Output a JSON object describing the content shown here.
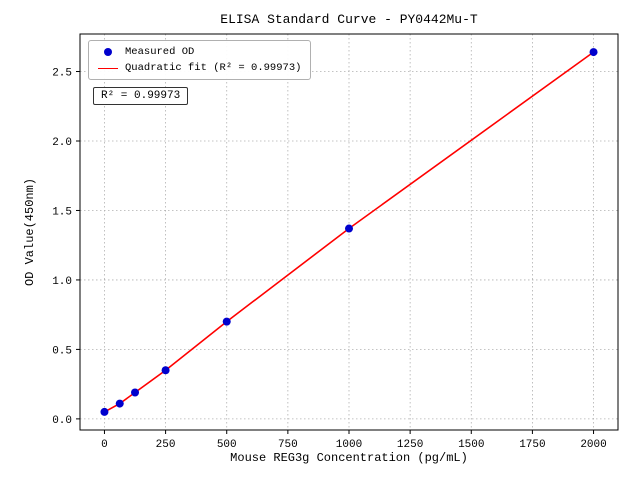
{
  "chart_data": {
    "type": "scatter",
    "title": "ELISA Standard Curve - PY0442Mu-T",
    "xlabel": "Mouse REG3g Concentration (pg/mL)",
    "ylabel": "OD Value(450nm)",
    "xlim": [
      -100,
      2100
    ],
    "ylim": [
      -0.08,
      2.77
    ],
    "x_ticks": [
      0,
      250,
      500,
      750,
      1000,
      1250,
      1500,
      1750,
      2000
    ],
    "y_ticks": [
      0.0,
      0.5,
      1.0,
      1.5,
      2.0,
      2.5
    ],
    "grid": true,
    "legend": {
      "position": "upper left",
      "entries": [
        {
          "label": "Measured OD",
          "marker": "dot",
          "color": "#0000cd"
        },
        {
          "label": "Quadratic fit (R² = 0.99973)",
          "marker": "line",
          "color": "#ff0000"
        }
      ]
    },
    "annotation": "R² = 0.99973",
    "series": [
      {
        "name": "Measured OD",
        "type": "scatter",
        "color": "#0000cd",
        "points": [
          [
            0,
            0.05
          ],
          [
            62.5,
            0.11
          ],
          [
            125,
            0.19
          ],
          [
            250,
            0.35
          ],
          [
            500,
            0.7
          ],
          [
            1000,
            1.37
          ],
          [
            2000,
            2.64
          ]
        ]
      },
      {
        "name": "Quadratic fit",
        "type": "line",
        "color": "#ff0000",
        "x_range": [
          0,
          2000
        ]
      }
    ]
  },
  "colors": {
    "grid": "#b0b0b0",
    "frame": "#000000",
    "background": "#ffffff"
  }
}
